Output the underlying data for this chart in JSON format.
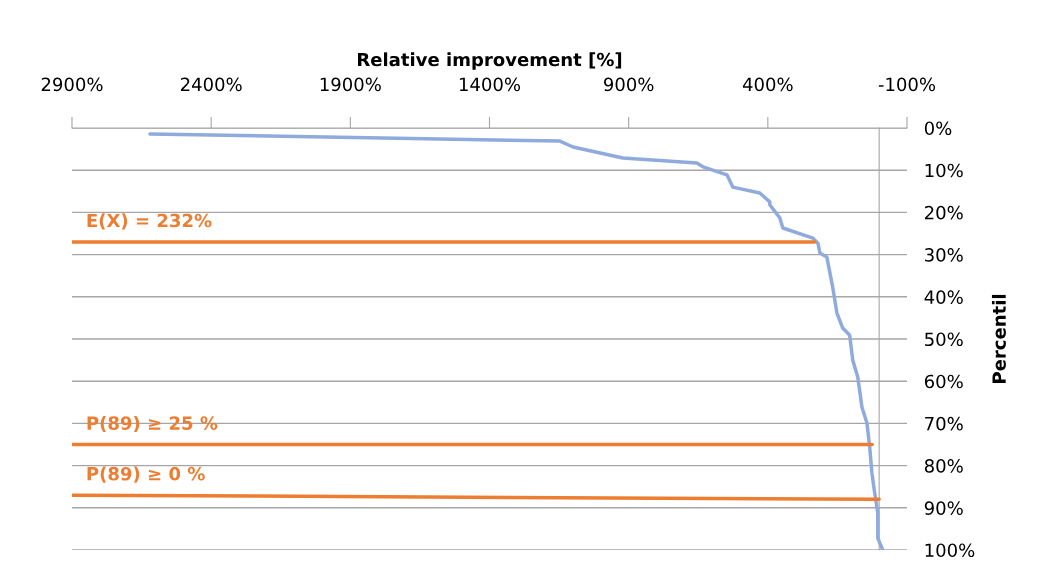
{
  "chart_data": {
    "type": "line",
    "xlabel": "Relative improvement [%]",
    "ylabel": "Percentil",
    "xlim": [
      2900,
      -100
    ],
    "xticks": [
      {
        "value": 2900,
        "label": "2900%"
      },
      {
        "value": 2400,
        "label": "2400%"
      },
      {
        "value": 1900,
        "label": "1900%"
      },
      {
        "value": 1400,
        "label": "1400%"
      },
      {
        "value": 900,
        "label": "900%"
      },
      {
        "value": 400,
        "label": "400%"
      },
      {
        "value": -100,
        "label": "-100%"
      }
    ],
    "ylim": [
      100,
      0
    ],
    "yticks": [
      {
        "value": 0,
        "label": "0%"
      },
      {
        "value": 10,
        "label": "10%"
      },
      {
        "value": 20,
        "label": "20%"
      },
      {
        "value": 30,
        "label": "30%"
      },
      {
        "value": 40,
        "label": "40%"
      },
      {
        "value": 50,
        "label": "50%"
      },
      {
        "value": 60,
        "label": "60%"
      },
      {
        "value": 70,
        "label": "70%"
      },
      {
        "value": 80,
        "label": "80%"
      },
      {
        "value": 90,
        "label": "90%"
      },
      {
        "value": 100,
        "label": "100%"
      }
    ],
    "grid": "y",
    "legend": false,
    "series": [
      {
        "color": "#8faadc",
        "x": [
          2620,
          1147,
          1100,
          921,
          655,
          633,
          547,
          526,
          429,
          393,
          393,
          357,
          346,
          238,
          220,
          213,
          188,
          167,
          152,
          131,
          106,
          95,
          77,
          62,
          44,
          34,
          26,
          16,
          5,
          5,
          -13
        ],
        "values": [
          1.4,
          3.1,
          4.5,
          7.1,
          8.3,
          9.2,
          11.1,
          14,
          15.4,
          17.5,
          18.2,
          21.3,
          23.7,
          26.1,
          27.3,
          29.6,
          30.6,
          37.7,
          43.8,
          47.4,
          49.1,
          55,
          59,
          66.1,
          69.9,
          75.6,
          81.8,
          86.5,
          91.2,
          97.2,
          100
        ]
      },
      {
        "color": "#ed7d31",
        "x": [
          2900,
          232
        ],
        "values": [
          27,
          27
        ]
      },
      {
        "color": "#ed7d31",
        "x": [
          2900,
          25
        ],
        "values": [
          75,
          75
        ]
      },
      {
        "color": "#ed7d31",
        "x": [
          2900,
          0
        ],
        "values": [
          87,
          88
        ]
      }
    ],
    "annotations": [
      "E(X) = 232%",
      "P(89) ≥ 25 %",
      "P(89) ≥ 0 %"
    ]
  }
}
